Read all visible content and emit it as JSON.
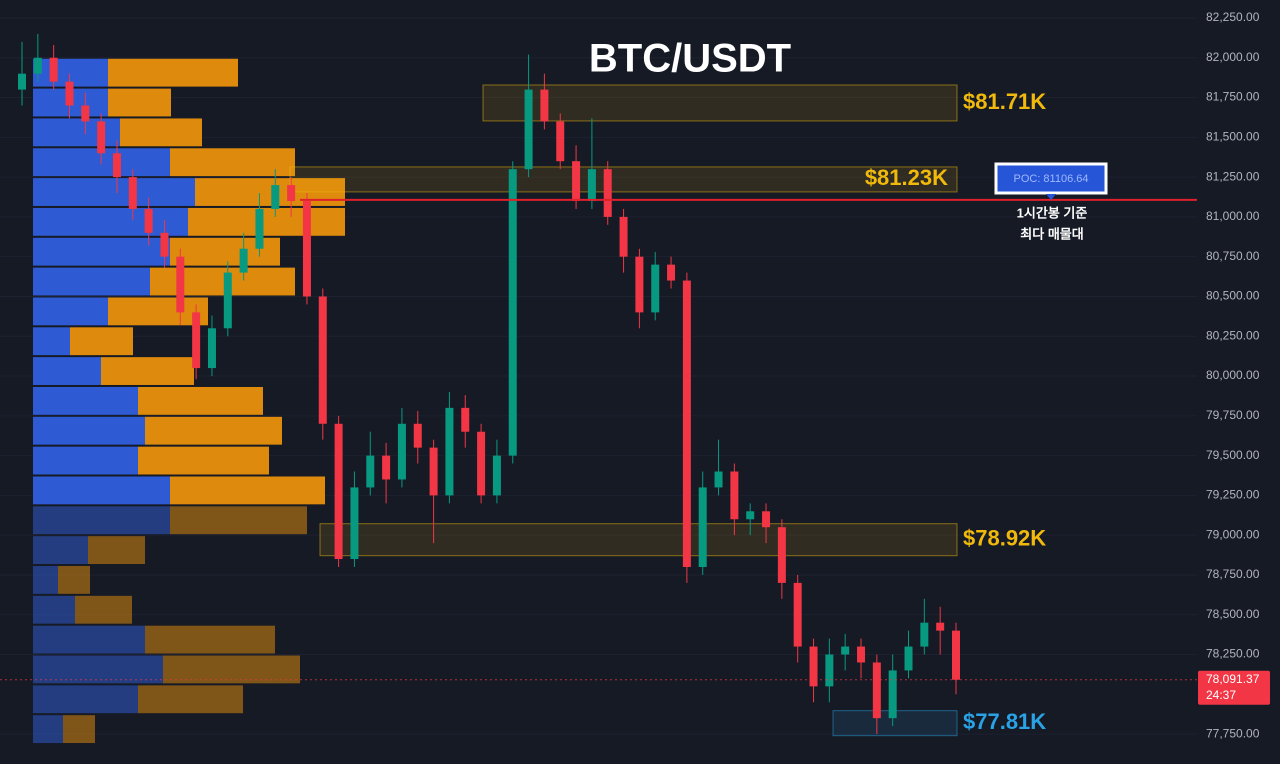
{
  "chart_data": {
    "type": "candlestick",
    "title": "BTC/USDT",
    "ylim": [
      77562,
      82363
    ],
    "yticks": [
      {
        "value": 82250,
        "label": "82,250.00"
      },
      {
        "value": 82000,
        "label": "82,000.00"
      },
      {
        "value": 81750,
        "label": "81,750.00"
      },
      {
        "value": 81500,
        "label": "81,500.00"
      },
      {
        "value": 81250,
        "label": "81,250.00"
      },
      {
        "value": 81000,
        "label": "81,000.00"
      },
      {
        "value": 80750,
        "label": "80,750.00"
      },
      {
        "value": 80500,
        "label": "80,500.00"
      },
      {
        "value": 80250,
        "label": "80,250.00"
      },
      {
        "value": 80000,
        "label": "80,000.00"
      },
      {
        "value": 79750,
        "label": "79,750.00"
      },
      {
        "value": 79500,
        "label": "79,500.00"
      },
      {
        "value": 79250,
        "label": "79,250.00"
      },
      {
        "value": 79000,
        "label": "79,000.00"
      },
      {
        "value": 78750,
        "label": "78,750.00"
      },
      {
        "value": 78500,
        "label": "78,500.00"
      },
      {
        "value": 78250,
        "label": "78,250.00"
      },
      {
        "value": 77750,
        "label": "77,750.00"
      }
    ],
    "up_color": "#089981",
    "down_color": "#f23645",
    "open": [
      81800,
      81900,
      82000,
      81850,
      81700,
      81600,
      81400,
      81250,
      81050,
      80900,
      80750,
      80400,
      80050,
      80300,
      80650,
      80800,
      81050,
      81200,
      81100,
      80500,
      79700,
      78850,
      79300,
      79500,
      79350,
      79700,
      79550,
      79250,
      79800,
      79650,
      79250,
      79500,
      81300,
      81800,
      81600,
      81350,
      81100,
      81300,
      81000,
      80750,
      80400,
      80700,
      80600,
      78800,
      79300,
      79400,
      79100,
      79150,
      79050,
      78700,
      78300,
      78050,
      78250,
      78300,
      78200,
      77850,
      78150,
      78300,
      78450,
      78400
    ],
    "high": [
      82100,
      82150,
      82080,
      81900,
      81780,
      81650,
      81480,
      81300,
      81120,
      80980,
      80800,
      80450,
      80380,
      80720,
      80900,
      81150,
      81300,
      81250,
      81150,
      80550,
      79750,
      79400,
      79650,
      79580,
      79800,
      79780,
      79600,
      79900,
      79880,
      79700,
      79600,
      81350,
      82020,
      81900,
      81650,
      81450,
      81620,
      81350,
      81050,
      80800,
      80780,
      80750,
      80650,
      79400,
      79600,
      79450,
      79200,
      79200,
      79100,
      78750,
      78350,
      78350,
      78380,
      78350,
      78250,
      78250,
      78400,
      78600,
      78550,
      78450
    ],
    "low": [
      81700,
      81850,
      81800,
      81620,
      81520,
      81330,
      81150,
      80980,
      80820,
      80680,
      80320,
      79980,
      80000,
      80250,
      80600,
      80750,
      81000,
      81000,
      80450,
      79600,
      78800,
      78800,
      79250,
      79200,
      79300,
      79450,
      78950,
      79200,
      79550,
      79200,
      79200,
      79450,
      81250,
      81550,
      81300,
      81050,
      81050,
      80950,
      80650,
      80300,
      80350,
      80550,
      78700,
      78750,
      79250,
      79000,
      79000,
      78950,
      78600,
      78200,
      77950,
      77950,
      78150,
      78100,
      77750,
      77800,
      78100,
      78250,
      78250,
      78000
    ],
    "close": [
      81900,
      82000,
      81850,
      81700,
      81600,
      81400,
      81250,
      81050,
      80900,
      80750,
      80400,
      80050,
      80300,
      80650,
      80800,
      81050,
      81200,
      81100,
      80500,
      79700,
      78850,
      79300,
      79500,
      79350,
      79700,
      79550,
      79250,
      79800,
      79650,
      79250,
      79500,
      81300,
      81800,
      81600,
      81350,
      81100,
      81300,
      81000,
      80750,
      80400,
      80700,
      80600,
      78800,
      79300,
      79400,
      79100,
      79150,
      79050,
      78700,
      78300,
      78050,
      78250,
      78300,
      78200,
      77850,
      78150,
      78300,
      78450,
      78400,
      78091.37
    ],
    "volume_profile": {
      "bins": [
        82000,
        81812.5,
        81625,
        81437.5,
        81250,
        81062.5,
        80875,
        80687.5,
        80500,
        80312.5,
        80125,
        79937.5,
        79750,
        79562.5,
        79375,
        79187.5,
        79000,
        78812.5,
        78625,
        78437.5,
        78250,
        78062.5,
        77875,
        77687.5
      ],
      "buy": [
        75,
        75,
        87,
        137,
        162,
        155,
        137,
        117,
        75,
        37,
        68,
        105,
        112,
        105,
        137,
        137,
        55,
        25,
        42,
        112,
        130,
        105,
        30
      ],
      "sell": [
        130,
        63,
        82,
        125,
        150,
        157,
        110,
        145,
        100,
        63,
        93,
        125,
        137,
        131,
        155,
        137,
        57,
        32,
        57,
        130,
        137,
        105,
        32
      ],
      "buy_color": "#2f5fdc",
      "sell_color": "#e8900c"
    },
    "zones": [
      {
        "label": "$81.71K",
        "high": 81829,
        "low": 81603,
        "color": "#f0b90b"
      },
      {
        "label": "$81.23K",
        "high": 81314,
        "low": 81157,
        "color": "#f0b90b"
      },
      {
        "label": "$78.92K",
        "high": 79072,
        "low": 78871,
        "color": "#f0b90b"
      },
      {
        "label": "$77.81K",
        "high": 77897,
        "low": 77740,
        "color": "#29a3e6"
      }
    ],
    "poc": {
      "value": 81106.64,
      "label": "POC: 81106.64"
    },
    "poc_note": [
      "1시간봉 기준",
      "최다 매물대"
    ],
    "last_price_label": "78,091.37",
    "countdown": "24:37"
  }
}
